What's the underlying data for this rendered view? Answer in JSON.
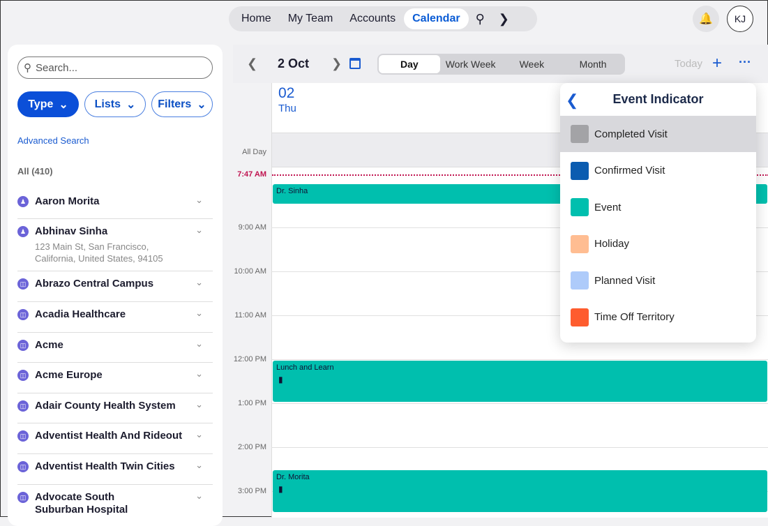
{
  "nav": {
    "items": [
      "Home",
      "My Team",
      "Accounts",
      "Calendar"
    ],
    "active": "Calendar",
    "avatar": "KJ"
  },
  "sidebar": {
    "search_placeholder": "Search...",
    "chips": [
      "Type",
      "Lists",
      "Filters"
    ],
    "advanced": "Advanced Search",
    "count": "All (410)",
    "items": [
      {
        "name": "Aaron Morita",
        "type": "person"
      },
      {
        "name": "Abhinav Sinha",
        "type": "person",
        "address": "123 Main St, San Francisco,\nCalifornia, United States, 94105"
      },
      {
        "name": "Abrazo Central Campus",
        "type": "account"
      },
      {
        "name": "Acadia Healthcare",
        "type": "account"
      },
      {
        "name": "Acme",
        "type": "account"
      },
      {
        "name": "Acme Europe",
        "type": "account"
      },
      {
        "name": "Adair County Health System",
        "type": "account"
      },
      {
        "name": "Adventist Health And Rideout",
        "type": "account"
      },
      {
        "name": "Adventist Health Twin Cities",
        "type": "account"
      },
      {
        "name": "Advocate South\nSuburban Hospital",
        "type": "account"
      }
    ]
  },
  "calendar": {
    "date": "2 Oct",
    "views": [
      "Day",
      "Work Week",
      "Week",
      "Month"
    ],
    "active_view": "Day",
    "today": "Today",
    "day_num": "02",
    "day_name": "Thu",
    "all_day": "All Day",
    "now": "7:47 AM",
    "hours": [
      "9:00 AM",
      "10:00 AM",
      "11:00 AM",
      "12:00 PM",
      "1:00 PM",
      "2:00 PM",
      "3:00 PM"
    ],
    "events": [
      {
        "title": "Dr. Sinha"
      },
      {
        "title": "Lunch and Learn"
      },
      {
        "title": "Dr. Morita"
      }
    ]
  },
  "popover": {
    "title": "Event Indicator",
    "items": [
      {
        "label": "Completed Visit",
        "color": "#a3a3a6",
        "selected": true
      },
      {
        "label": "Confirmed Visit",
        "color": "#0b5cb0"
      },
      {
        "label": "Event",
        "color": "#00bfae"
      },
      {
        "label": "Holiday",
        "color": "#ffbd92"
      },
      {
        "label": "Planned Visit",
        "color": "#aecbfa"
      },
      {
        "label": "Time Off Territory",
        "color": "#fe5c2e"
      }
    ]
  }
}
